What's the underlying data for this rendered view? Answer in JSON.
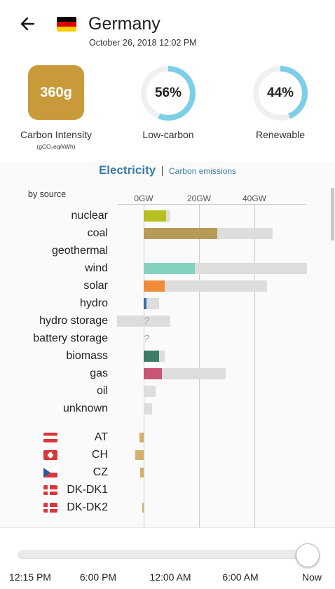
{
  "header": {
    "country": "Germany",
    "datetime": "October 26, 2018 12:02 PM",
    "flag_colors": [
      "#000000",
      "#dd0000",
      "#ffce00"
    ]
  },
  "kpis": {
    "carbon_intensity": {
      "value": "360g",
      "label": "Carbon Intensity",
      "unit": "(gCO₂eq/kWh)",
      "color": "#c99a3a"
    },
    "low_carbon": {
      "value": "56%",
      "fraction": 0.56,
      "label": "Low-carbon"
    },
    "renewable": {
      "value": "44%",
      "fraction": 0.44,
      "label": "Renewable"
    },
    "gauge_color": "#7dcfe8",
    "gauge_track": "#f0f0f0"
  },
  "tabs": {
    "electricity": "Electricity",
    "separator": "|",
    "carbon": "Carbon emissions"
  },
  "chart_data": {
    "type": "bar",
    "title": "by source",
    "x_ticks": [
      "0GW",
      "20GW",
      "40GW"
    ],
    "x_tick_values": [
      0,
      20,
      40
    ],
    "unit": "GW",
    "sources": [
      {
        "name": "nuclear",
        "production": 8.0,
        "capacity": 9.5,
        "color": "#b8c020"
      },
      {
        "name": "coal",
        "production": 26.5,
        "capacity": 46.5,
        "color": "#b89a58"
      },
      {
        "name": "geothermal",
        "production": null,
        "capacity": null,
        "color": "#aaaaaa"
      },
      {
        "name": "wind",
        "production": 18.5,
        "capacity": 59.0,
        "color": "#83d2c0"
      },
      {
        "name": "solar",
        "production": 7.5,
        "capacity": 44.5,
        "color": "#f08c38"
      },
      {
        "name": "hydro",
        "production": 1.0,
        "capacity": 5.5,
        "color": "#3c6fa8"
      },
      {
        "name": "hydro storage",
        "production": null,
        "capacity": [
          -9.5,
          9.5
        ],
        "unknown": "?",
        "color": "#2a5fa8"
      },
      {
        "name": "battery storage",
        "production": null,
        "capacity": null,
        "unknown": "?",
        "color": "#888888"
      },
      {
        "name": "biomass",
        "production": 5.5,
        "capacity": 7.5,
        "color": "#3e7c6a"
      },
      {
        "name": "gas",
        "production": 6.5,
        "capacity": 29.5,
        "color": "#c75773"
      },
      {
        "name": "oil",
        "production": 0.0,
        "capacity": 4.2,
        "color": "#777777"
      },
      {
        "name": "unknown",
        "production": 0.0,
        "capacity": 3.0,
        "color": "#999999"
      }
    ],
    "exchanges": [
      {
        "name": "AT",
        "flow": -1.6,
        "flag": "AT"
      },
      {
        "name": "CH",
        "flow": -3.0,
        "flag": "CH"
      },
      {
        "name": "CZ",
        "flow": -1.2,
        "flag": "CZ"
      },
      {
        "name": "DK-DK1",
        "flow": 0.0,
        "flag": "DK"
      },
      {
        "name": "DK-DK2",
        "flow": -0.6,
        "flag": "DK"
      }
    ],
    "exchange_color": "#d4b06a"
  },
  "timeline": {
    "labels": [
      "12:15 PM",
      "6:00 PM",
      "12:00 AM",
      "6:00 AM",
      "Now"
    ],
    "position": 1.0
  }
}
